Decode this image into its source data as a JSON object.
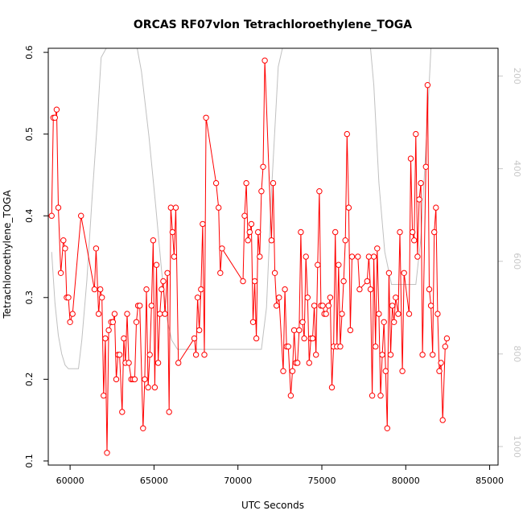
{
  "chart_data": {
    "type": "line",
    "title": "ORCAS RF07vlon Tetrachloroethylene_TOGA",
    "xlabel": "UTC Seconds",
    "ylabel": "Tetrachloroethylene_TOGA",
    "xlim": [
      58700,
      85500
    ],
    "ylim": [
      0.095,
      0.605
    ],
    "x_ticks": [
      60000,
      65000,
      70000,
      75000,
      80000,
      85000
    ],
    "y_ticks": [
      0.1,
      0.2,
      0.3,
      0.4,
      0.5,
      0.6
    ],
    "y2lim": [
      1040,
      140
    ],
    "y2_ticks": [
      200,
      400,
      600,
      800,
      1000
    ],
    "grid": false,
    "colors": {
      "series": "#ff0000",
      "secondary": "#c0c0c0"
    },
    "series": [
      {
        "values": [
          [
            58900,
            0.4
          ],
          [
            59000,
            0.52
          ],
          [
            59100,
            0.52
          ],
          [
            59200,
            0.53
          ],
          [
            59300,
            0.41
          ],
          [
            59450,
            0.33
          ],
          [
            59600,
            0.37
          ],
          [
            59700,
            0.36
          ],
          [
            59800,
            0.3
          ],
          [
            59900,
            0.3
          ],
          [
            60000,
            0.27
          ],
          [
            60150,
            0.28
          ],
          [
            60650,
            0.4
          ],
          [
            61450,
            0.31
          ],
          [
            61550,
            0.36
          ],
          [
            61700,
            0.28
          ],
          [
            61800,
            0.31
          ],
          [
            61900,
            0.3
          ],
          [
            62000,
            0.18
          ],
          [
            62100,
            0.25
          ],
          [
            62200,
            0.11
          ],
          [
            62300,
            0.26
          ],
          [
            62450,
            0.27
          ],
          [
            62550,
            0.27
          ],
          [
            62650,
            0.28
          ],
          [
            62750,
            0.2
          ],
          [
            62850,
            0.23
          ],
          [
            62950,
            0.23
          ],
          [
            63100,
            0.16
          ],
          [
            63200,
            0.25
          ],
          [
            63300,
            0.22
          ],
          [
            63400,
            0.28
          ],
          [
            63500,
            0.22
          ],
          [
            63650,
            0.2
          ],
          [
            63750,
            0.2
          ],
          [
            63850,
            0.2
          ],
          [
            63950,
            0.27
          ],
          [
            64050,
            0.29
          ],
          [
            64150,
            0.29
          ],
          [
            64350,
            0.14
          ],
          [
            64450,
            0.2
          ],
          [
            64550,
            0.31
          ],
          [
            64650,
            0.19
          ],
          [
            64750,
            0.23
          ],
          [
            64850,
            0.29
          ],
          [
            64950,
            0.37
          ],
          [
            65050,
            0.19
          ],
          [
            65150,
            0.34
          ],
          [
            65250,
            0.22
          ],
          [
            65350,
            0.28
          ],
          [
            65450,
            0.31
          ],
          [
            65550,
            0.32
          ],
          [
            65650,
            0.28
          ],
          [
            65800,
            0.33
          ],
          [
            65900,
            0.16
          ],
          [
            66000,
            0.41
          ],
          [
            66100,
            0.38
          ],
          [
            66200,
            0.35
          ],
          [
            66300,
            0.41
          ],
          [
            66450,
            0.22
          ],
          [
            67400,
            0.25
          ],
          [
            67500,
            0.23
          ],
          [
            67600,
            0.3
          ],
          [
            67700,
            0.26
          ],
          [
            67800,
            0.31
          ],
          [
            67900,
            0.39
          ],
          [
            68000,
            0.23
          ],
          [
            68100,
            0.52
          ],
          [
            68700,
            0.44
          ],
          [
            68850,
            0.41
          ],
          [
            68950,
            0.33
          ],
          [
            69050,
            0.36
          ],
          [
            70300,
            0.32
          ],
          [
            70400,
            0.4
          ],
          [
            70500,
            0.44
          ],
          [
            70600,
            0.37
          ],
          [
            70700,
            0.38
          ],
          [
            70800,
            0.39
          ],
          [
            70900,
            0.27
          ],
          [
            71000,
            0.32
          ],
          [
            71100,
            0.25
          ],
          [
            71200,
            0.38
          ],
          [
            71300,
            0.35
          ],
          [
            71400,
            0.43
          ],
          [
            71500,
            0.46
          ],
          [
            71600,
            0.59
          ],
          [
            72000,
            0.37
          ],
          [
            72100,
            0.44
          ],
          [
            72200,
            0.33
          ],
          [
            72300,
            0.29
          ],
          [
            72450,
            0.3
          ],
          [
            72700,
            0.21
          ],
          [
            72800,
            0.31
          ],
          [
            72900,
            0.24
          ],
          [
            73000,
            0.24
          ],
          [
            73150,
            0.18
          ],
          [
            73250,
            0.21
          ],
          [
            73350,
            0.26
          ],
          [
            73450,
            0.22
          ],
          [
            73550,
            0.22
          ],
          [
            73650,
            0.26
          ],
          [
            73750,
            0.38
          ],
          [
            73850,
            0.27
          ],
          [
            73950,
            0.25
          ],
          [
            74050,
            0.35
          ],
          [
            74150,
            0.3
          ],
          [
            74250,
            0.22
          ],
          [
            74350,
            0.25
          ],
          [
            74450,
            0.25
          ],
          [
            74550,
            0.29
          ],
          [
            74650,
            0.23
          ],
          [
            74750,
            0.34
          ],
          [
            74850,
            0.43
          ],
          [
            74950,
            0.29
          ],
          [
            75050,
            0.29
          ],
          [
            75150,
            0.28
          ],
          [
            75250,
            0.28
          ],
          [
            75400,
            0.29
          ],
          [
            75500,
            0.3
          ],
          [
            75600,
            0.19
          ],
          [
            75700,
            0.24
          ],
          [
            75800,
            0.38
          ],
          [
            75900,
            0.24
          ],
          [
            76000,
            0.34
          ],
          [
            76100,
            0.24
          ],
          [
            76200,
            0.28
          ],
          [
            76300,
            0.32
          ],
          [
            76400,
            0.37
          ],
          [
            76500,
            0.5
          ],
          [
            76600,
            0.41
          ],
          [
            76700,
            0.26
          ],
          [
            76800,
            0.35
          ],
          [
            77150,
            0.35
          ],
          [
            77250,
            0.31
          ],
          [
            77700,
            0.32
          ],
          [
            77800,
            0.35
          ],
          [
            77900,
            0.31
          ],
          [
            78000,
            0.18
          ],
          [
            78100,
            0.35
          ],
          [
            78200,
            0.24
          ],
          [
            78300,
            0.36
          ],
          [
            78400,
            0.28
          ],
          [
            78500,
            0.18
          ],
          [
            78600,
            0.23
          ],
          [
            78700,
            0.27
          ],
          [
            78800,
            0.21
          ],
          [
            78900,
            0.14
          ],
          [
            79000,
            0.33
          ],
          [
            79100,
            0.23
          ],
          [
            79200,
            0.29
          ],
          [
            79300,
            0.27
          ],
          [
            79400,
            0.3
          ],
          [
            79550,
            0.28
          ],
          [
            79650,
            0.38
          ],
          [
            79800,
            0.21
          ],
          [
            79900,
            0.33
          ],
          [
            80200,
            0.28
          ],
          [
            80300,
            0.47
          ],
          [
            80400,
            0.38
          ],
          [
            80500,
            0.37
          ],
          [
            80600,
            0.5
          ],
          [
            80700,
            0.35
          ],
          [
            80800,
            0.42
          ],
          [
            80900,
            0.44
          ],
          [
            81000,
            0.23
          ],
          [
            81200,
            0.46
          ],
          [
            81300,
            0.56
          ],
          [
            81400,
            0.31
          ],
          [
            81500,
            0.29
          ],
          [
            81600,
            0.23
          ],
          [
            81700,
            0.38
          ],
          [
            81800,
            0.41
          ],
          [
            81900,
            0.28
          ],
          [
            82000,
            0.21
          ],
          [
            82100,
            0.22
          ],
          [
            82200,
            0.15
          ],
          [
            82350,
            0.24
          ],
          [
            82450,
            0.25
          ]
        ]
      }
    ],
    "secondary_line": [
      [
        58900,
        580
      ],
      [
        59100,
        690
      ],
      [
        59300,
        760
      ],
      [
        59500,
        800
      ],
      [
        59700,
        824
      ],
      [
        59900,
        832
      ],
      [
        60500,
        832
      ],
      [
        60700,
        770
      ],
      [
        61000,
        640
      ],
      [
        61300,
        470
      ],
      [
        61600,
        310
      ],
      [
        61850,
        160
      ],
      [
        62150,
        140
      ],
      [
        64000,
        140
      ],
      [
        64250,
        190
      ],
      [
        64700,
        330
      ],
      [
        65100,
        480
      ],
      [
        65450,
        620
      ],
      [
        65750,
        720
      ],
      [
        66050,
        770
      ],
      [
        66400,
        790
      ],
      [
        71400,
        790
      ],
      [
        71700,
        700
      ],
      [
        72000,
        450
      ],
      [
        72400,
        180
      ],
      [
        72650,
        140
      ],
      [
        77900,
        140
      ],
      [
        78100,
        220
      ],
      [
        78400,
        430
      ],
      [
        78750,
        580
      ],
      [
        79150,
        650
      ],
      [
        79600,
        650
      ],
      [
        80600,
        650
      ],
      [
        80900,
        550
      ],
      [
        81250,
        320
      ],
      [
        81500,
        140
      ]
    ]
  }
}
